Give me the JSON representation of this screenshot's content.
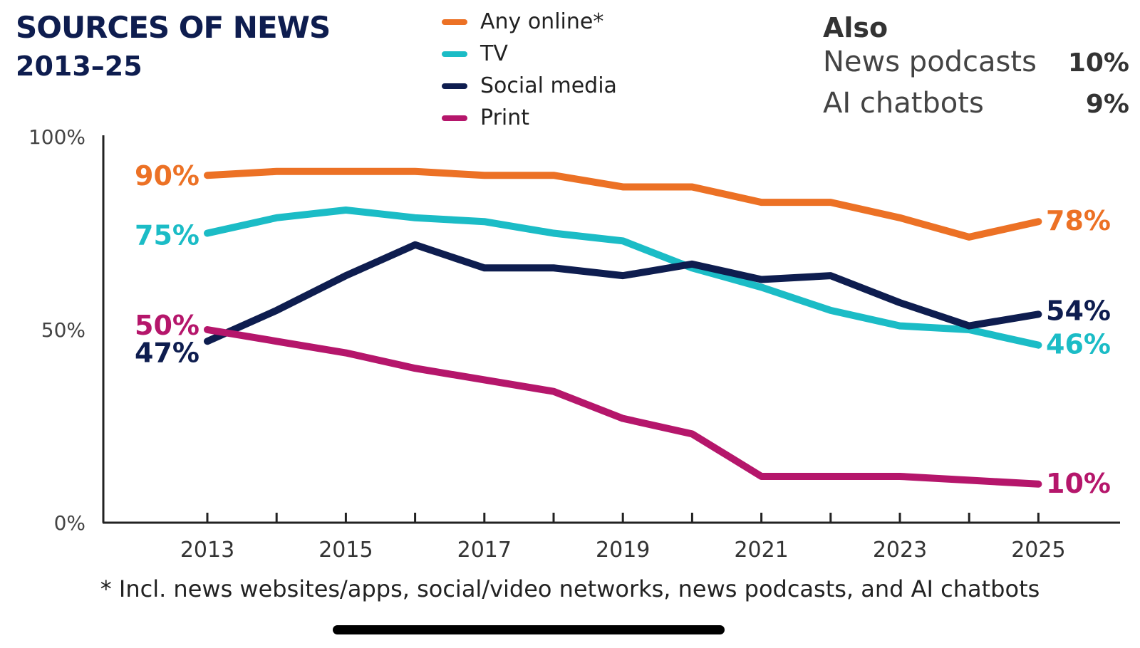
{
  "header": {
    "title": "SOURCES OF NEWS",
    "subtitle": "2013–25"
  },
  "also": {
    "title": "Also",
    "items": [
      {
        "label": "News podcasts",
        "value": "10%"
      },
      {
        "label": "AI chatbots",
        "value": "9%"
      }
    ]
  },
  "footnote": "* Incl. news websites/apps, social/video networks, news podcasts, and AI chatbots",
  "chart_data": {
    "type": "line",
    "title": "SOURCES OF NEWS",
    "subtitle": "2013–25",
    "x": [
      2013,
      2014,
      2015,
      2016,
      2017,
      2018,
      2019,
      2020,
      2021,
      2022,
      2023,
      2024,
      2025
    ],
    "xticks": [
      "2013",
      "2015",
      "2017",
      "2019",
      "2021",
      "2023",
      "2025"
    ],
    "yticks": [
      "0%",
      "50%",
      "100%"
    ],
    "ylim": [
      0,
      100
    ],
    "grid": false,
    "legend_position": "top-center",
    "series": [
      {
        "name": "Any online*",
        "color": "#ec7125",
        "values": [
          90,
          91,
          91,
          91,
          90,
          90,
          87,
          87,
          83,
          83,
          79,
          74,
          78
        ],
        "start_label": "90%",
        "end_label": "78%"
      },
      {
        "name": "TV",
        "color": "#1bbcc6",
        "values": [
          75,
          79,
          81,
          79,
          78,
          75,
          73,
          66,
          61,
          55,
          51,
          50,
          46
        ],
        "start_label": "75%",
        "end_label": "46%"
      },
      {
        "name": "Social media",
        "color": "#0e1d4f",
        "values": [
          47,
          55,
          64,
          72,
          66,
          66,
          64,
          67,
          63,
          64,
          57,
          51,
          54
        ],
        "start_label": "47%",
        "end_label": "54%"
      },
      {
        "name": "Print",
        "color": "#b5166b",
        "values": [
          50,
          47,
          44,
          40,
          37,
          34,
          27,
          23,
          12,
          12,
          12,
          11,
          10
        ],
        "start_label": "50%",
        "end_label": "10%"
      }
    ]
  }
}
